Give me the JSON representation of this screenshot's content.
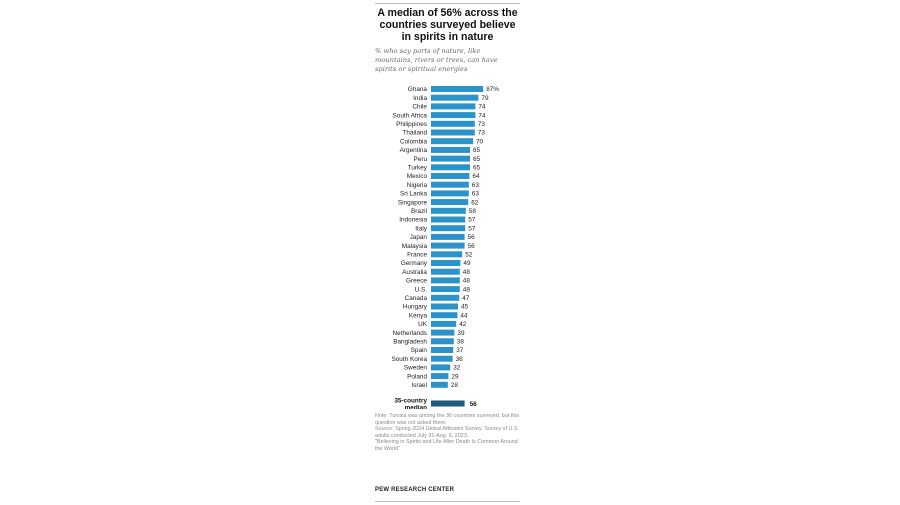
{
  "title": "A median of 56% across the countries surveyed believe in spirits in nature",
  "subtitle": "% who say parts of nature, like mountains, rivers or trees, can have spirits or spiritual energies",
  "chart_data": {
    "type": "bar",
    "orientation": "horizontal",
    "title": "A median of 56% across the countries surveyed believe in spirits in nature",
    "subtitle": "% who say parts of nature, like mountains, rivers or trees, can have spirits or spiritual energies",
    "categories": [
      "Ghana",
      "India",
      "Chile",
      "South Africa",
      "Philippines",
      "Thailand",
      "Colombia",
      "Argentina",
      "Peru",
      "Turkey",
      "Mexico",
      "Nigeria",
      "Sri Lanka",
      "Singapore",
      "Brazil",
      "Indonesia",
      "Italy",
      "Japan",
      "Malaysia",
      "France",
      "Germany",
      "Australia",
      "Greece",
      "U.S.",
      "Canada",
      "Hungary",
      "Kenya",
      "UK",
      "Netherlands",
      "Bangladesh",
      "Spain",
      "South Korea",
      "Sweden",
      "Poland",
      "Israel"
    ],
    "values": [
      87,
      79,
      74,
      74,
      73,
      73,
      70,
      65,
      65,
      65,
      64,
      63,
      63,
      62,
      58,
      57,
      57,
      56,
      56,
      52,
      49,
      48,
      48,
      48,
      47,
      45,
      44,
      42,
      39,
      38,
      37,
      36,
      32,
      29,
      28
    ],
    "value_labels": [
      "87%",
      "79",
      "74",
      "74",
      "73",
      "73",
      "70",
      "65",
      "65",
      "65",
      "64",
      "63",
      "63",
      "62",
      "58",
      "57",
      "57",
      "56",
      "56",
      "52",
      "49",
      "48",
      "48",
      "48",
      "47",
      "45",
      "44",
      "42",
      "39",
      "38",
      "37",
      "36",
      "32",
      "29",
      "28"
    ],
    "median": {
      "label": "35-country median",
      "value": 56,
      "value_label": "56"
    },
    "xlim": [
      0,
      100
    ],
    "bar_color": "#2a93c9",
    "median_color": "#1c5a7d",
    "grid": false,
    "legend": "none"
  },
  "notes": [
    "Note: Tunisia was among the 36 countries surveyed, but this question was not asked there.",
    "Source: Spring 2024 Global Attitudes Survey. Survey of U.S. adults conducted July 31-Aug. 6, 2023.",
    "\"Believing in Spirits and Life After Death Is Common Around the World\""
  ],
  "org": "PEW RESEARCH CENTER"
}
